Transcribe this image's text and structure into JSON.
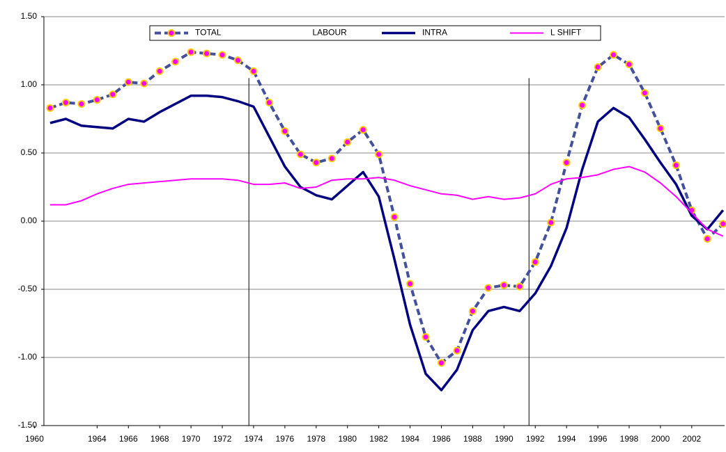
{
  "chart_data": {
    "type": "line",
    "x": [
      1961,
      1962,
      1963,
      1964,
      1965,
      1966,
      1967,
      1968,
      1969,
      1970,
      1971,
      1972,
      1973,
      1974,
      1975,
      1976,
      1977,
      1978,
      1979,
      1980,
      1981,
      1982,
      1983,
      1984,
      1985,
      1986,
      1987,
      1988,
      1989,
      1990,
      1991,
      1992,
      1993,
      1994,
      1995,
      1996,
      1997,
      1998,
      1999,
      2000,
      2001,
      2002,
      2003,
      2004
    ],
    "xlim": [
      1960.6,
      2004.1
    ],
    "xticks": [
      1960,
      1964,
      1966,
      1968,
      1970,
      1972,
      1974,
      1976,
      1978,
      1980,
      1982,
      1984,
      1986,
      1988,
      1990,
      1992,
      1994,
      1996,
      1998,
      2000,
      2002
    ],
    "ylim": [
      -1.5,
      1.5
    ],
    "yticks": [
      {
        "value": -1.5,
        "label": "-1.50"
      },
      {
        "value": -1,
        "label": "-1.00"
      },
      {
        "value": -0.5,
        "label": "-0.50"
      },
      {
        "value": 0,
        "label": "0.00"
      },
      {
        "value": 0.5,
        "label": "0.50"
      },
      {
        "value": 1,
        "label": "1.00"
      },
      {
        "value": 1.5,
        "label": "1.50"
      }
    ],
    "grid": true,
    "reference_lines": [
      1973.7,
      1991.6
    ],
    "series": [
      {
        "name": "TOTAL LABOUR",
        "color": "#44509c",
        "marker_fill": "#ff00ff",
        "marker_edge": "#ffcc00",
        "dashed": true,
        "values": [
          0.83,
          0.87,
          0.86,
          0.89,
          0.93,
          1.02,
          1.01,
          1.1,
          1.17,
          1.24,
          1.23,
          1.22,
          1.18,
          1.1,
          0.87,
          0.66,
          0.49,
          0.43,
          0.46,
          0.58,
          0.67,
          0.49,
          0.03,
          -0.46,
          -0.85,
          -1.04,
          -0.95,
          -0.66,
          -0.49,
          -0.47,
          -0.48,
          -0.3,
          -0.01,
          0.43,
          0.85,
          1.13,
          1.22,
          1.15,
          0.94,
          0.68,
          0.41,
          0.08,
          -0.13,
          -0.02
        ]
      },
      {
        "name": "INTRA",
        "color": "#000080",
        "values": [
          0.72,
          0.75,
          0.7,
          0.69,
          0.68,
          0.75,
          0.73,
          0.8,
          0.86,
          0.92,
          0.92,
          0.91,
          0.88,
          0.84,
          0.62,
          0.4,
          0.25,
          0.19,
          0.16,
          0.26,
          0.36,
          0.18,
          -0.28,
          -0.76,
          -1.12,
          -1.24,
          -1.09,
          -0.8,
          -0.66,
          -0.63,
          -0.66,
          -0.53,
          -0.33,
          -0.05,
          0.38,
          0.73,
          0.83,
          0.76,
          0.6,
          0.43,
          0.27,
          0.04,
          -0.06,
          0.08
        ]
      },
      {
        "name": "L SHIFT",
        "color": "#ff00ff",
        "values": [
          0.12,
          0.12,
          0.15,
          0.2,
          0.24,
          0.27,
          0.28,
          0.29,
          0.3,
          0.31,
          0.31,
          0.31,
          0.3,
          0.27,
          0.27,
          0.28,
          0.24,
          0.25,
          0.3,
          0.31,
          0.31,
          0.32,
          0.3,
          0.26,
          0.23,
          0.2,
          0.19,
          0.16,
          0.18,
          0.16,
          0.17,
          0.2,
          0.27,
          0.31,
          0.32,
          0.34,
          0.38,
          0.4,
          0.36,
          0.28,
          0.18,
          0.06,
          -0.06,
          -0.11
        ]
      }
    ]
  }
}
